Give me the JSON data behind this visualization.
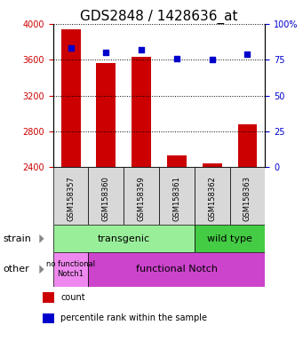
{
  "title": "GDS2848 / 1428636_at",
  "samples": [
    "GSM158357",
    "GSM158360",
    "GSM158359",
    "GSM158361",
    "GSM158362",
    "GSM158363"
  ],
  "counts": [
    3940,
    3560,
    3630,
    2530,
    2440,
    2880
  ],
  "percentile_ranks": [
    83,
    80,
    82,
    76,
    75,
    79
  ],
  "ymin": 2400,
  "ymax": 4000,
  "y2min": 0,
  "y2max": 100,
  "yticks": [
    2400,
    2800,
    3200,
    3600,
    4000
  ],
  "y2ticks": [
    0,
    25,
    50,
    75,
    100
  ],
  "bar_color": "#cc0000",
  "dot_color": "#0000cc",
  "strain_transgenic_color": "#99ee99",
  "strain_wildtype_color": "#44cc44",
  "other_nofunctional_color": "#ee88ee",
  "other_functional_color": "#cc44cc",
  "strain_label_transgenic": "transgenic",
  "strain_label_wildtype": "wild type",
  "other_label_nofunctional": "no functional\nNotch1",
  "other_label_functional": "functional Notch",
  "row_labels": [
    "strain",
    "other"
  ],
  "legend_count": "count",
  "legend_percentile": "percentile rank within the sample",
  "title_fontsize": 11,
  "axis_label_color_left": "#cc0000",
  "axis_label_color_right": "#0000cc",
  "tick_label_fontsize": 7,
  "sample_label_fontsize": 6,
  "annotation_fontsize": 8
}
